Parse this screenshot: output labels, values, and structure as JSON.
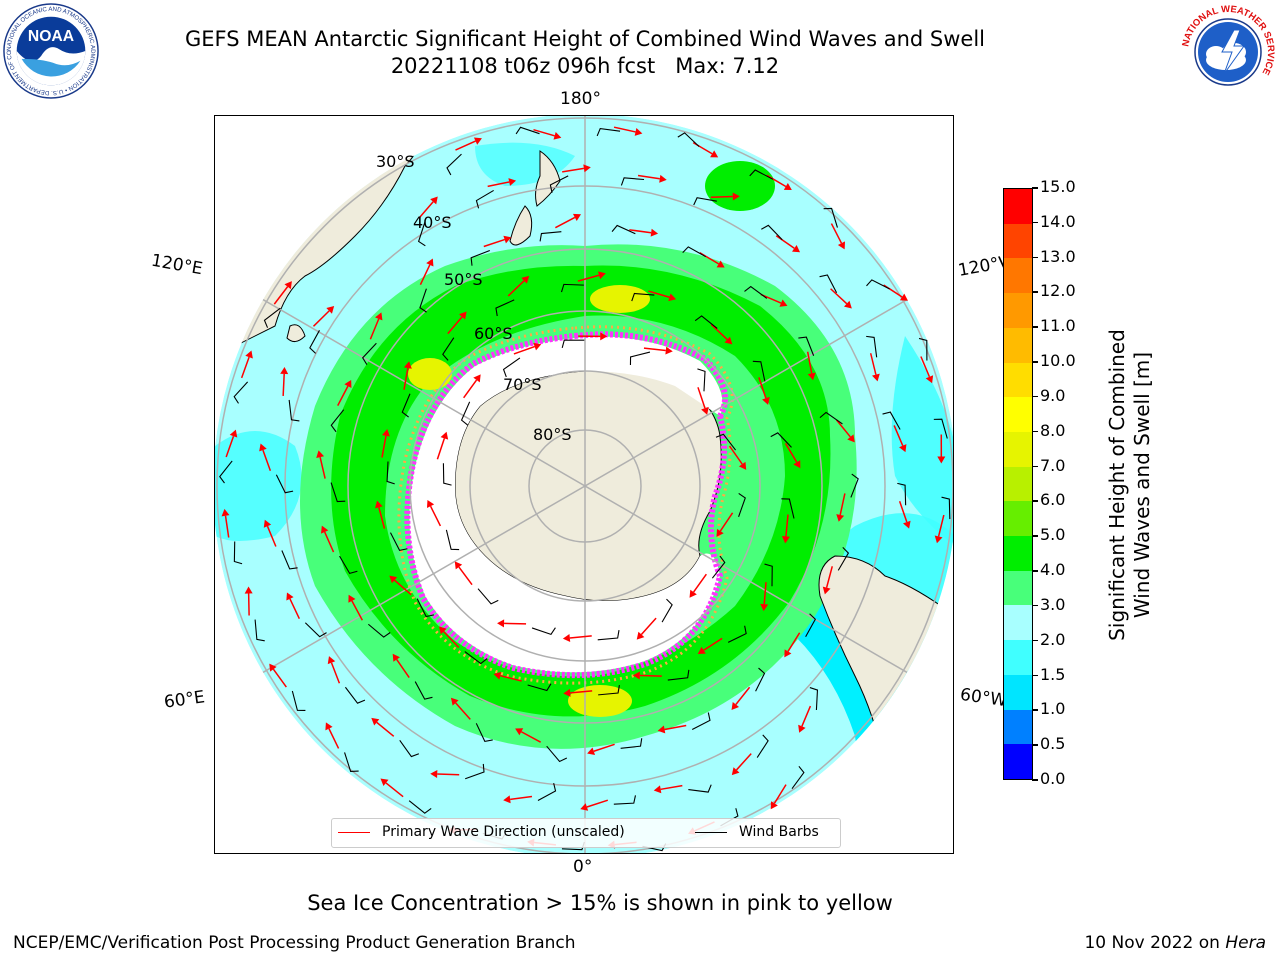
{
  "title": {
    "line1": "GEFS MEAN Antarctic Significant Height of Combined Wind Waves and Swell",
    "line2": "20221108 t06z 096h fcst   Max: 7.12"
  },
  "map": {
    "longitude_labels": {
      "top": "180°",
      "bottom": "0°",
      "upper_left": "120°E",
      "upper_right": "120°W",
      "lower_left": "60°E",
      "lower_right": "60°W"
    },
    "latitude_labels": [
      "30°S",
      "40°S",
      "50°S",
      "60°S",
      "70°S",
      "80°S"
    ],
    "land_color": "#efecdc",
    "ice_color": "#ffffff",
    "sea_ice_colors": [
      "#ff33ff",
      "#ffaa44",
      "#ffee88"
    ]
  },
  "colorbar": {
    "label_line1": "Significant Height of Combined",
    "label_line2": "Wind Waves and Swell [m]",
    "ticks": [
      "0.0",
      "0.5",
      "1.0",
      "1.5",
      "2.0",
      "3.0",
      "4.0",
      "5.0",
      "6.0",
      "7.0",
      "8.0",
      "9.0",
      "10.0",
      "11.0",
      "12.0",
      "13.0",
      "14.0",
      "15.0"
    ],
    "colors": [
      "#0000ff",
      "#0080ff",
      "#00e5ff",
      "#40ffff",
      "#a8ffff",
      "#48ff7a",
      "#00ee00",
      "#66ee00",
      "#b8f000",
      "#e6f400",
      "#ffff00",
      "#ffdd00",
      "#ffbb00",
      "#ff9900",
      "#ff7700",
      "#ff4400",
      "#ff0000"
    ]
  },
  "legend": {
    "primary_wave_label": "Primary Wave Direction (unscaled)",
    "primary_wave_color": "#ff0000",
    "wind_barbs_label": "Wind Barbs",
    "wind_barbs_color": "#000000"
  },
  "subtitle": "Sea Ice Concentration > 15% is shown in pink to yellow",
  "footer": {
    "left": "NCEP/EMC/Verification Post Processing Product Generation Branch",
    "date": "10 Nov 2022 on ",
    "machine": "Hera"
  },
  "logos": {
    "noaa_text": "NOAA",
    "noaa_ring_text": "NATIONAL OCEANIC AND ATMOSPHERIC ADMINISTRATION • U.S. DEPARTMENT OF COMMERCE",
    "nws_ring_text": "NATIONAL WEATHER SERVICE"
  }
}
